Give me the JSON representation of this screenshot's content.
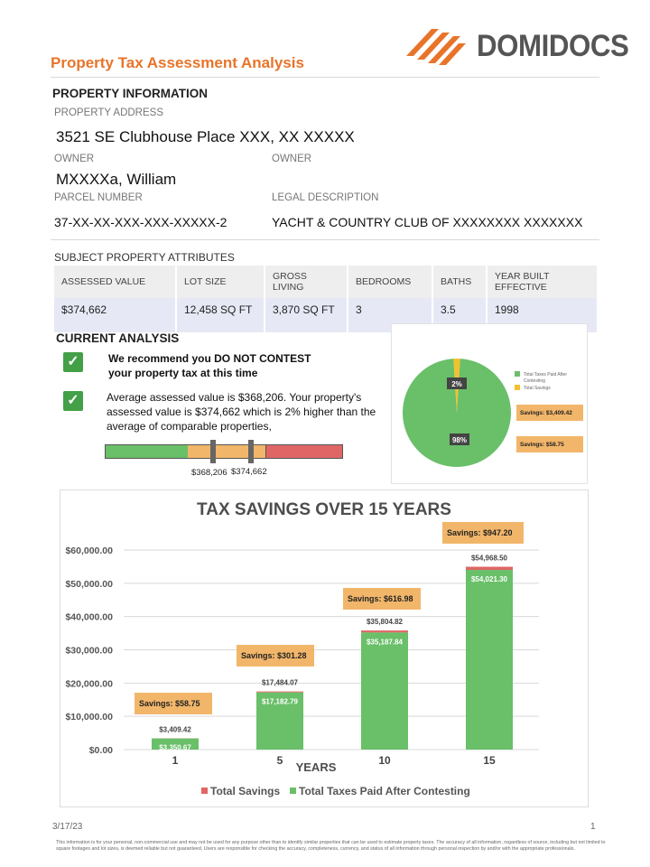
{
  "header": {
    "title": "Property Tax Assessment Analysis",
    "brand": "DOMIDOCS"
  },
  "property": {
    "section_title": "PROPERTY INFORMATION",
    "address_label": "PROPERTY ADDRESS",
    "address": "3521 SE Clubhouse Place XXX, XX XXXXX",
    "owner_label_1": "OWNER",
    "owner_label_2": "OWNER",
    "owner_1": "MXXXXa, William",
    "parcel_label": "PARCEL NUMBER",
    "parcel": "37-XX-XX-XXX-XXX-XXXXX-2",
    "legal_label": "LEGAL DESCRIPTION",
    "legal": "YACHT & COUNTRY CLUB OF XXXXXXXX XXXXXXX"
  },
  "attributes": {
    "section_title": "SUBJECT PROPERTY ATTRIBUTES",
    "headers": [
      "ASSESSED VALUE",
      "LOT SIZE",
      "GROSS LIVING",
      "BEDROOMS",
      "BATHS",
      "YEAR BUILT EFFECTIVE"
    ],
    "values": [
      "$374,662",
      "12,458 SQ FT",
      "3,870 SQ FT",
      "3",
      "3.5",
      "1998"
    ]
  },
  "analysis": {
    "section_title": "CURRENT ANALYSIS",
    "recommendation_line1": "We recommend you DO NOT CONTEST",
    "recommendation_line2": "your property tax at this time",
    "average_text": "Average assessed value is $368,206. Your property's assessed value is $374,662 which is 2% higher than the average of comparable properties,",
    "marker_avg": "$368,206",
    "marker_subject": "$374,662",
    "colors": {
      "green": "#6abf69",
      "orange": "#f2b66a",
      "red": "#e06666",
      "check": "#43a047"
    }
  },
  "chart_data": [
    {
      "type": "pie",
      "slices": [
        {
          "name": "Total Taxes Paid After Contesting",
          "value": 98,
          "label": "98%",
          "color": "#6abf69"
        },
        {
          "name": "Total Savings",
          "value": 2,
          "label": "2%",
          "color": "#f2c12e"
        }
      ],
      "legend": [
        "Total Taxes Paid After Contesting",
        "Total Savings"
      ],
      "callouts": [
        "Savings: $3,409.42",
        "Savings: $58.75"
      ]
    },
    {
      "type": "bar",
      "stacked": true,
      "title": "TAX SAVINGS OVER 15 YEARS",
      "xlabel": "YEARS",
      "ylabel": "",
      "categories": [
        "1",
        "5",
        "10",
        "15"
      ],
      "ylim": [
        0,
        60000
      ],
      "yticks": [
        "$0.00",
        "$10,000.00",
        "$20,000.00",
        "$30,000.00",
        "$40,000.00",
        "$50,000.00",
        "$60,000.00"
      ],
      "series": [
        {
          "name": "Total Taxes Paid After Contesting",
          "values": [
            3350.67,
            17182.79,
            35187.84,
            54021.3
          ],
          "labels": [
            "$3,350.67",
            "$17,182.79",
            "$35,187.84",
            "$54,021.30"
          ],
          "color": "#6abf69"
        },
        {
          "name": "Total Savings",
          "values": [
            58.75,
            301.28,
            616.98,
            947.2
          ],
          "color": "#e06666"
        }
      ],
      "totals": [
        3409.42,
        17484.07,
        35804.82,
        54968.5
      ],
      "total_labels": [
        "$3,409.42",
        "$17,484.07",
        "$35,804.82",
        "$54,968.50"
      ],
      "callouts": [
        "Savings: $58.75",
        "Savings: $301.28",
        "Savings: $616.98",
        "Savings: $947.20"
      ],
      "legend": [
        "Total Savings",
        "Total Taxes Paid After Contesting"
      ],
      "grid": true
    }
  ],
  "footer": {
    "date": "3/17/23",
    "page": "1",
    "note": "This information is for your personal, non-commercial use and may not be used for any purpose other than to identify similar properties that can be used to estimate property taxes. The accuracy of all information, regardless of source, including but not limited to square footages and lot sizes, is deemed reliable but not guaranteed. Users are responsible for checking the accuracy, completeness, currency, and status of all information through personal inspection by and/or with the appropriate professionals."
  }
}
